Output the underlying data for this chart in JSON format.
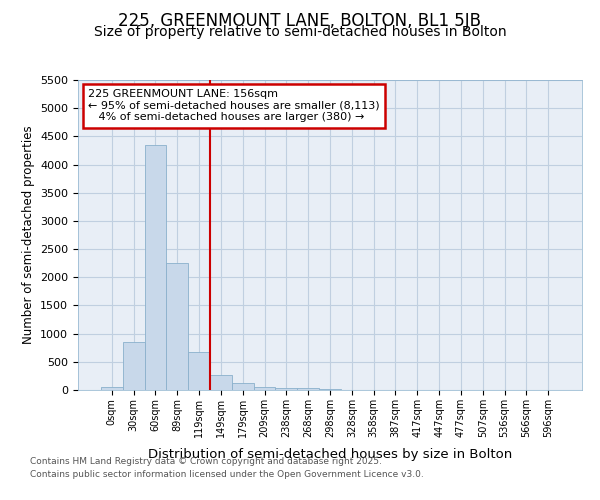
{
  "title1": "225, GREENMOUNT LANE, BOLTON, BL1 5JB",
  "title2": "Size of property relative to semi-detached houses in Bolton",
  "xlabel": "Distribution of semi-detached houses by size in Bolton",
  "ylabel": "Number of semi-detached properties",
  "bin_labels": [
    "0sqm",
    "30sqm",
    "60sqm",
    "89sqm",
    "119sqm",
    "149sqm",
    "179sqm",
    "209sqm",
    "238sqm",
    "268sqm",
    "298sqm",
    "328sqm",
    "358sqm",
    "387sqm",
    "417sqm",
    "447sqm",
    "477sqm",
    "507sqm",
    "536sqm",
    "566sqm",
    "596sqm"
  ],
  "bar_values": [
    50,
    850,
    4350,
    2250,
    680,
    260,
    130,
    60,
    40,
    30,
    10,
    3,
    2,
    1,
    1,
    0,
    0,
    0,
    0,
    0,
    0
  ],
  "bar_color": "#c8d8ea",
  "bar_edgecolor": "#8ab0cc",
  "vline_x": 5,
  "vline_color": "#cc0000",
  "ylim": [
    0,
    5500
  ],
  "yticks": [
    0,
    500,
    1000,
    1500,
    2000,
    2500,
    3000,
    3500,
    4000,
    4500,
    5000,
    5500
  ],
  "annotation_text": "225 GREENMOUNT LANE: 156sqm\n← 95% of semi-detached houses are smaller (8,113)\n   4% of semi-detached houses are larger (380) →",
  "annotation_box_color": "#cc0000",
  "grid_color": "#c0cfe0",
  "background_color": "#e8eef6",
  "footer1": "Contains HM Land Registry data © Crown copyright and database right 2025.",
  "footer2": "Contains public sector information licensed under the Open Government Licence v3.0.",
  "title_fontsize": 12,
  "subtitle_fontsize": 10
}
